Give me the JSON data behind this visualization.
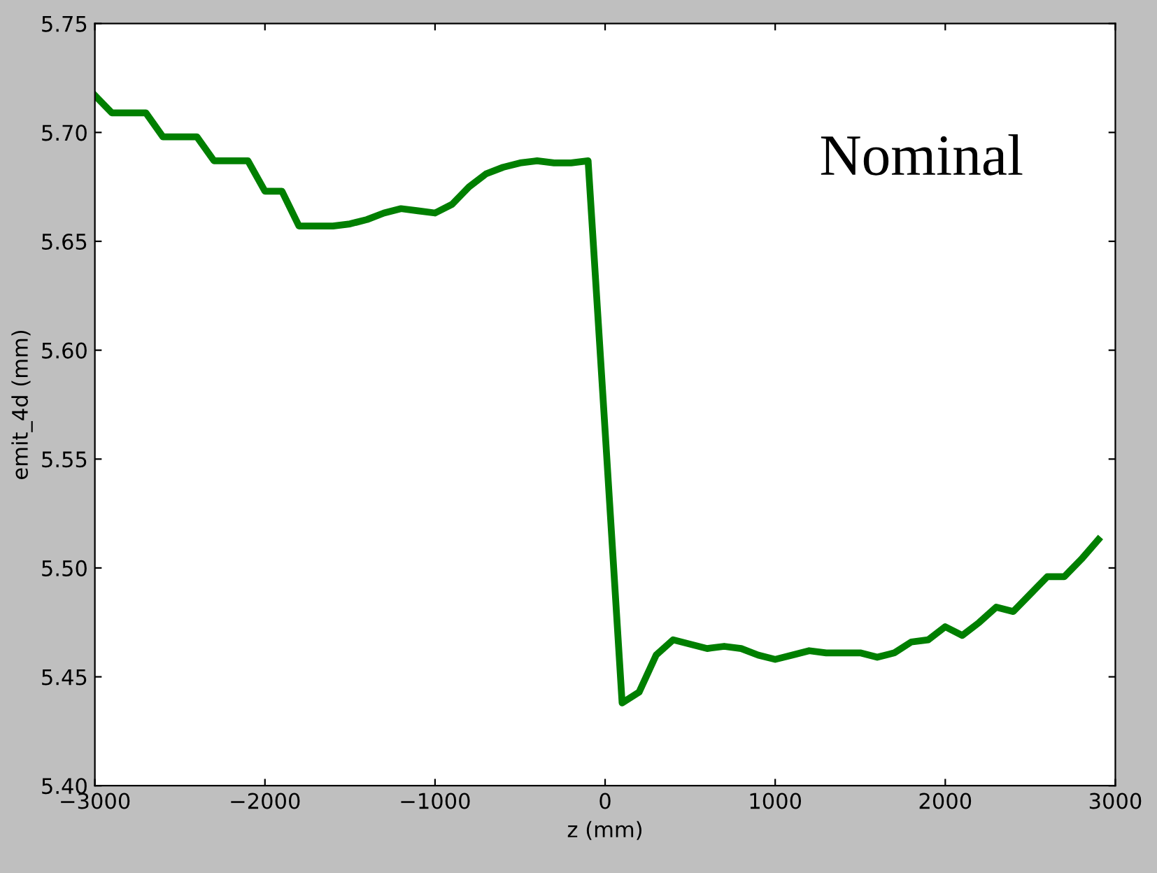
{
  "chart_data": {
    "type": "line",
    "xlabel": "z (mm)",
    "ylabel": "emit_4d (mm)",
    "annotations": [
      "Nominal"
    ],
    "x": [
      -3000,
      -2900,
      -2800,
      -2700,
      -2600,
      -2500,
      -2400,
      -2300,
      -2200,
      -2100,
      -2000,
      -1900,
      -1800,
      -1700,
      -1600,
      -1500,
      -1400,
      -1300,
      -1200,
      -1100,
      -1000,
      -900,
      -800,
      -700,
      -600,
      -500,
      -400,
      -300,
      -200,
      -100,
      0,
      100,
      200,
      300,
      400,
      500,
      600,
      700,
      800,
      900,
      1000,
      1100,
      1200,
      1300,
      1400,
      1500,
      1600,
      1700,
      1800,
      1900,
      2000,
      2100,
      2200,
      2300,
      2400,
      2500,
      2600,
      2700,
      2800,
      2900
    ],
    "series": [
      {
        "color": "#007f00",
        "values": [
          5.717,
          5.709,
          5.709,
          5.709,
          5.698,
          5.698,
          5.698,
          5.687,
          5.687,
          5.687,
          5.673,
          5.673,
          5.657,
          5.657,
          5.657,
          5.658,
          5.66,
          5.663,
          5.665,
          5.664,
          5.663,
          5.667,
          5.675,
          5.681,
          5.684,
          5.686,
          5.687,
          5.686,
          5.686,
          5.687,
          5.563,
          5.438,
          5.443,
          5.46,
          5.467,
          5.465,
          5.463,
          5.464,
          5.463,
          5.46,
          5.458,
          5.46,
          5.462,
          5.461,
          5.461,
          5.461,
          5.459,
          5.461,
          5.466,
          5.467,
          5.473,
          5.469,
          5.475,
          5.482,
          5.48,
          5.488,
          5.496,
          5.496,
          5.504,
          5.513
        ]
      }
    ],
    "xlim": [
      -3000,
      3000
    ],
    "ylim": [
      5.4,
      5.75
    ],
    "xticks": [
      {
        "value": -3000,
        "label": "−3000"
      },
      {
        "value": -2000,
        "label": "−2000"
      },
      {
        "value": -1000,
        "label": "−1000"
      },
      0,
      1000,
      2000,
      3000
    ],
    "yticks": [
      {
        "value": 5.4,
        "label": "5.40"
      },
      {
        "value": 5.45,
        "label": "5.45"
      },
      {
        "value": 5.5,
        "label": "5.50"
      },
      {
        "value": 5.55,
        "label": "5.55"
      },
      {
        "value": 5.6,
        "label": "5.60"
      },
      {
        "value": 5.65,
        "label": "5.65"
      },
      {
        "value": 5.7,
        "label": "5.70"
      },
      {
        "value": 5.75,
        "label": "5.75"
      }
    ],
    "grid": false,
    "legend": false,
    "marker": "none",
    "line_style": "solid"
  }
}
